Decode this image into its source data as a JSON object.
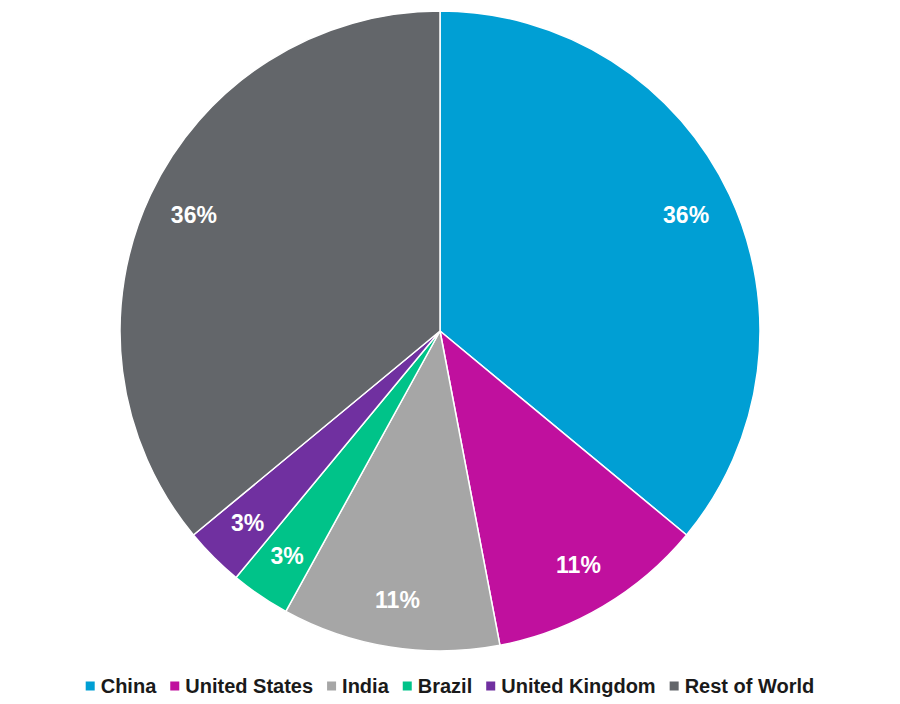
{
  "chart_data": {
    "type": "pie",
    "categories": [
      "China",
      "United States",
      "India",
      "Brazil",
      "United Kingdom",
      "Rest of World"
    ],
    "values": [
      36,
      11,
      11,
      3,
      3,
      36
    ],
    "value_labels": [
      "36%",
      "11%",
      "11%",
      "3%",
      "3%",
      "36%"
    ],
    "colors": [
      "#009fd4",
      "#c0109e",
      "#a6a6a6",
      "#00c389",
      "#7030a0",
      "#63666a"
    ],
    "data_labels": true,
    "legend": "bottom"
  }
}
